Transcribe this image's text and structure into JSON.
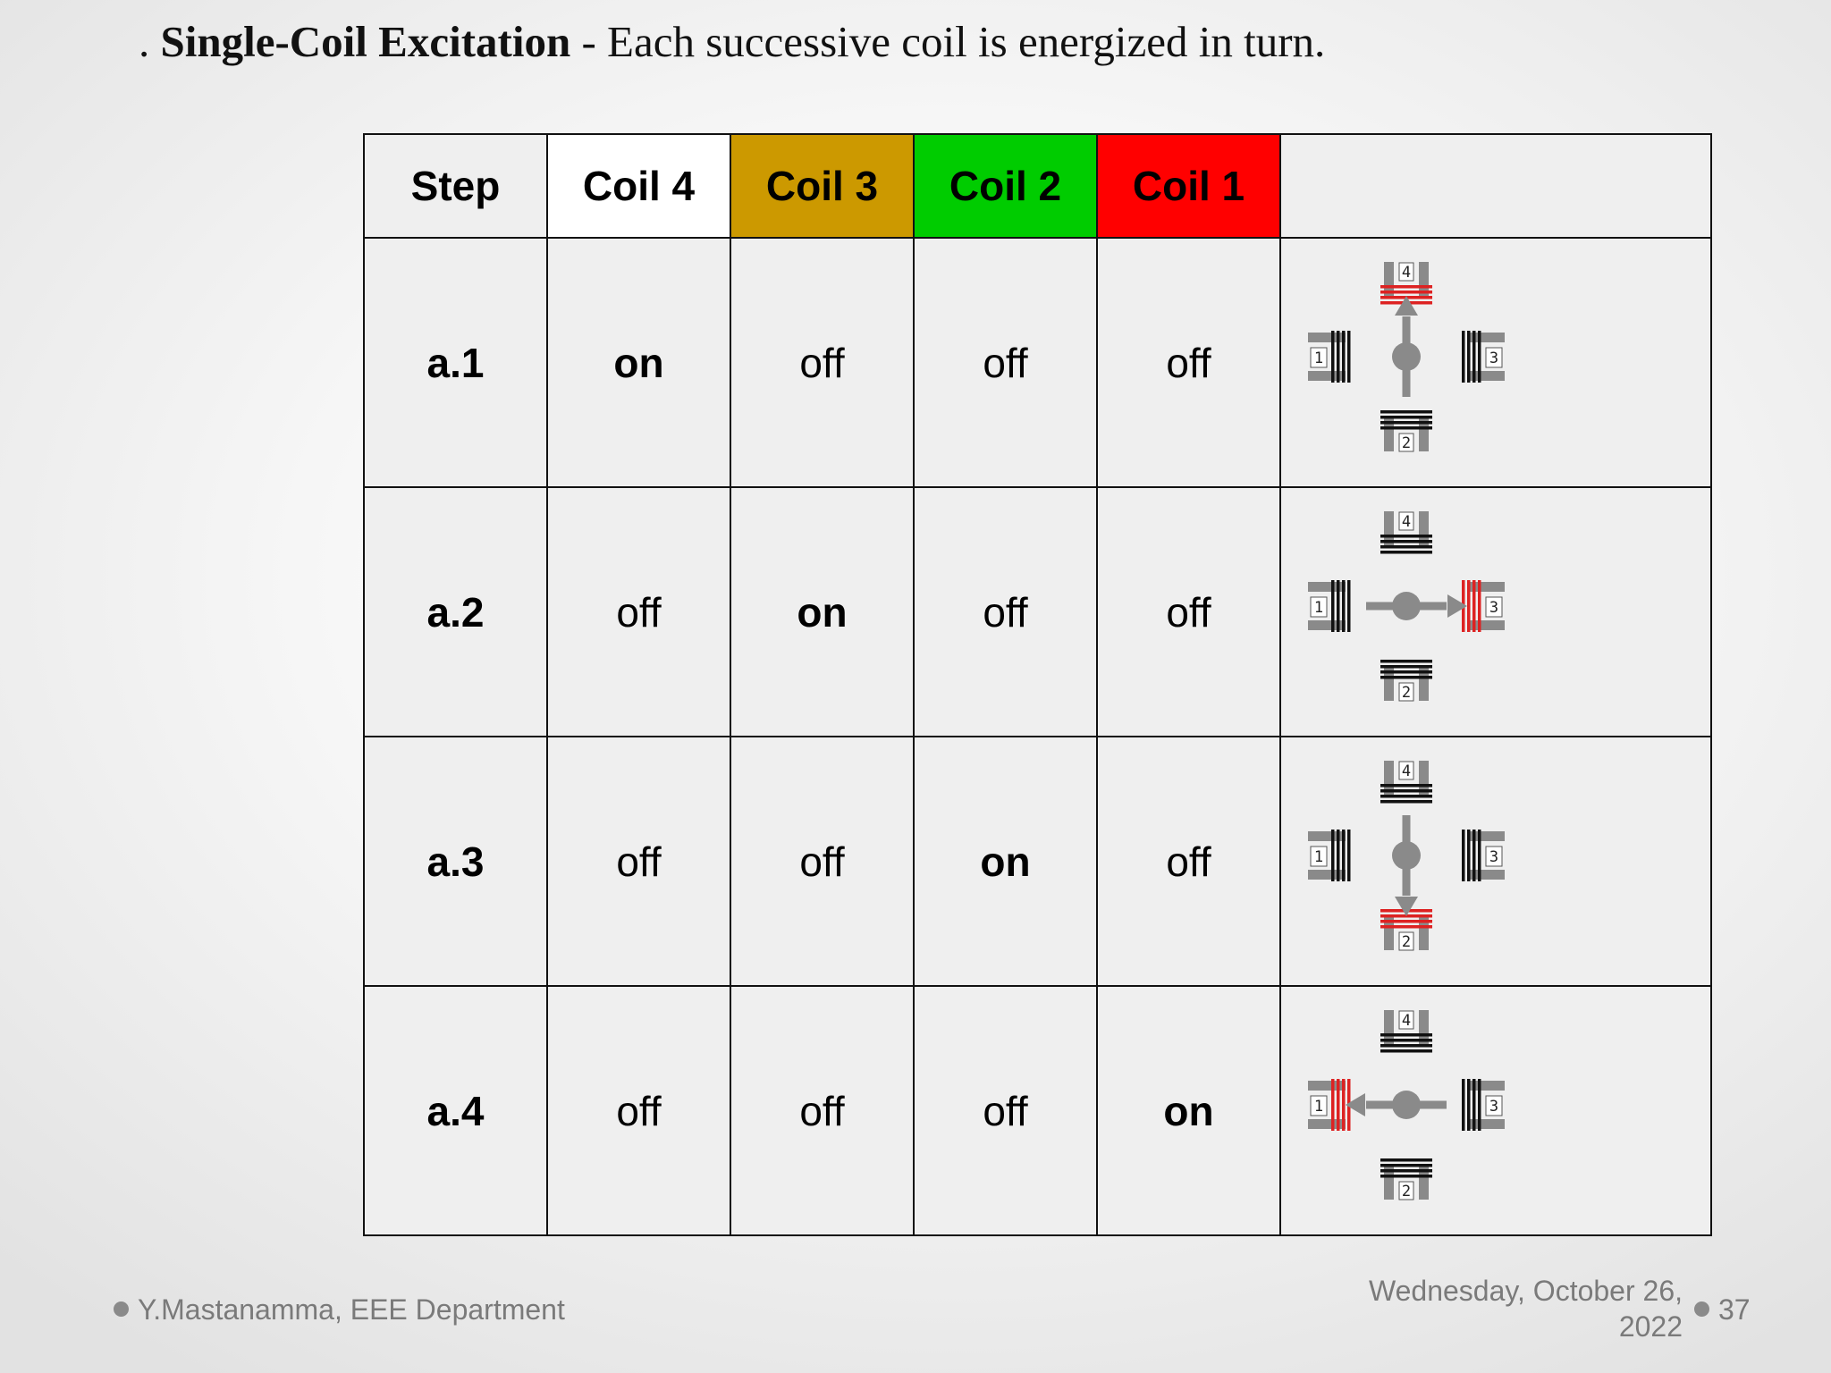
{
  "heading": {
    "prefix": ". ",
    "bold": "Single-Coil Excitation",
    "rest": " - Each successive coil is energized in turn."
  },
  "table": {
    "headers": [
      {
        "label": "Step",
        "bg": "#efefef"
      },
      {
        "label": "Coil 4",
        "bg": "#ffffff"
      },
      {
        "label": "Coil 3",
        "bg": "#cc9900"
      },
      {
        "label": "Coil 2",
        "bg": "#00cc00"
      },
      {
        "label": "Coil 1",
        "bg": "#ff0000"
      },
      {
        "label": "",
        "bg": "#efefef"
      }
    ],
    "rows": [
      {
        "step": "a.1",
        "coil4": "on",
        "coil3": "off",
        "coil2": "off",
        "coil1": "off",
        "energized": "4"
      },
      {
        "step": "a.2",
        "coil4": "off",
        "coil3": "on",
        "coil2": "off",
        "coil1": "off",
        "energized": "3"
      },
      {
        "step": "a.3",
        "coil4": "off",
        "coil3": "off",
        "coil2": "on",
        "coil1": "off",
        "energized": "2"
      },
      {
        "step": "a.4",
        "coil4": "off",
        "coil3": "off",
        "coil2": "off",
        "coil1": "on",
        "energized": "1"
      }
    ]
  },
  "diagram": {
    "coil_labels": [
      "1",
      "2",
      "3",
      "4"
    ],
    "active_color": "#dd2222",
    "inactive_color": "#111111",
    "frame_color": "#8a8a8a"
  },
  "footer": {
    "author": "Y.Mastanamma, EEE Department",
    "date_line1": "Wednesday, October 26,",
    "date_line2": "2022",
    "page": "37"
  }
}
